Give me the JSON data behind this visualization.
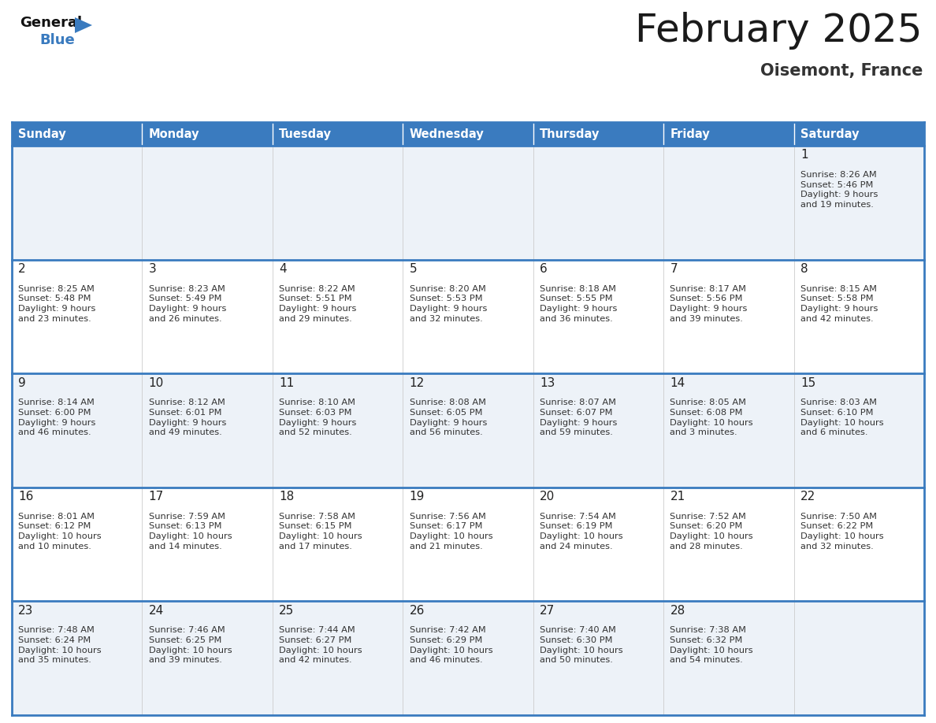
{
  "title": "February 2025",
  "subtitle": "Oisemont, France",
  "header_color": "#3a7bbf",
  "header_text_color": "#ffffff",
  "border_color": "#3a7bbf",
  "title_color": "#1a1a1a",
  "subtitle_color": "#333333",
  "days_of_week": [
    "Sunday",
    "Monday",
    "Tuesday",
    "Wednesday",
    "Thursday",
    "Friday",
    "Saturday"
  ],
  "calendar_data": [
    [
      {
        "day": null,
        "sunrise": null,
        "sunset": null,
        "daylight": null
      },
      {
        "day": null,
        "sunrise": null,
        "sunset": null,
        "daylight": null
      },
      {
        "day": null,
        "sunrise": null,
        "sunset": null,
        "daylight": null
      },
      {
        "day": null,
        "sunrise": null,
        "sunset": null,
        "daylight": null
      },
      {
        "day": null,
        "sunrise": null,
        "sunset": null,
        "daylight": null
      },
      {
        "day": null,
        "sunrise": null,
        "sunset": null,
        "daylight": null
      },
      {
        "day": 1,
        "sunrise": "8:26 AM",
        "sunset": "5:46 PM",
        "daylight": "9 hours\nand 19 minutes."
      }
    ],
    [
      {
        "day": 2,
        "sunrise": "8:25 AM",
        "sunset": "5:48 PM",
        "daylight": "9 hours\nand 23 minutes."
      },
      {
        "day": 3,
        "sunrise": "8:23 AM",
        "sunset": "5:49 PM",
        "daylight": "9 hours\nand 26 minutes."
      },
      {
        "day": 4,
        "sunrise": "8:22 AM",
        "sunset": "5:51 PM",
        "daylight": "9 hours\nand 29 minutes."
      },
      {
        "day": 5,
        "sunrise": "8:20 AM",
        "sunset": "5:53 PM",
        "daylight": "9 hours\nand 32 minutes."
      },
      {
        "day": 6,
        "sunrise": "8:18 AM",
        "sunset": "5:55 PM",
        "daylight": "9 hours\nand 36 minutes."
      },
      {
        "day": 7,
        "sunrise": "8:17 AM",
        "sunset": "5:56 PM",
        "daylight": "9 hours\nand 39 minutes."
      },
      {
        "day": 8,
        "sunrise": "8:15 AM",
        "sunset": "5:58 PM",
        "daylight": "9 hours\nand 42 minutes."
      }
    ],
    [
      {
        "day": 9,
        "sunrise": "8:14 AM",
        "sunset": "6:00 PM",
        "daylight": "9 hours\nand 46 minutes."
      },
      {
        "day": 10,
        "sunrise": "8:12 AM",
        "sunset": "6:01 PM",
        "daylight": "9 hours\nand 49 minutes."
      },
      {
        "day": 11,
        "sunrise": "8:10 AM",
        "sunset": "6:03 PM",
        "daylight": "9 hours\nand 52 minutes."
      },
      {
        "day": 12,
        "sunrise": "8:08 AM",
        "sunset": "6:05 PM",
        "daylight": "9 hours\nand 56 minutes."
      },
      {
        "day": 13,
        "sunrise": "8:07 AM",
        "sunset": "6:07 PM",
        "daylight": "9 hours\nand 59 minutes."
      },
      {
        "day": 14,
        "sunrise": "8:05 AM",
        "sunset": "6:08 PM",
        "daylight": "10 hours\nand 3 minutes."
      },
      {
        "day": 15,
        "sunrise": "8:03 AM",
        "sunset": "6:10 PM",
        "daylight": "10 hours\nand 6 minutes."
      }
    ],
    [
      {
        "day": 16,
        "sunrise": "8:01 AM",
        "sunset": "6:12 PM",
        "daylight": "10 hours\nand 10 minutes."
      },
      {
        "day": 17,
        "sunrise": "7:59 AM",
        "sunset": "6:13 PM",
        "daylight": "10 hours\nand 14 minutes."
      },
      {
        "day": 18,
        "sunrise": "7:58 AM",
        "sunset": "6:15 PM",
        "daylight": "10 hours\nand 17 minutes."
      },
      {
        "day": 19,
        "sunrise": "7:56 AM",
        "sunset": "6:17 PM",
        "daylight": "10 hours\nand 21 minutes."
      },
      {
        "day": 20,
        "sunrise": "7:54 AM",
        "sunset": "6:19 PM",
        "daylight": "10 hours\nand 24 minutes."
      },
      {
        "day": 21,
        "sunrise": "7:52 AM",
        "sunset": "6:20 PM",
        "daylight": "10 hours\nand 28 minutes."
      },
      {
        "day": 22,
        "sunrise": "7:50 AM",
        "sunset": "6:22 PM",
        "daylight": "10 hours\nand 32 minutes."
      }
    ],
    [
      {
        "day": 23,
        "sunrise": "7:48 AM",
        "sunset": "6:24 PM",
        "daylight": "10 hours\nand 35 minutes."
      },
      {
        "day": 24,
        "sunrise": "7:46 AM",
        "sunset": "6:25 PM",
        "daylight": "10 hours\nand 39 minutes."
      },
      {
        "day": 25,
        "sunrise": "7:44 AM",
        "sunset": "6:27 PM",
        "daylight": "10 hours\nand 42 minutes."
      },
      {
        "day": 26,
        "sunrise": "7:42 AM",
        "sunset": "6:29 PM",
        "daylight": "10 hours\nand 46 minutes."
      },
      {
        "day": 27,
        "sunrise": "7:40 AM",
        "sunset": "6:30 PM",
        "daylight": "10 hours\nand 50 minutes."
      },
      {
        "day": 28,
        "sunrise": "7:38 AM",
        "sunset": "6:32 PM",
        "daylight": "10 hours\nand 54 minutes."
      },
      {
        "day": null,
        "sunrise": null,
        "sunset": null,
        "daylight": null
      }
    ]
  ]
}
